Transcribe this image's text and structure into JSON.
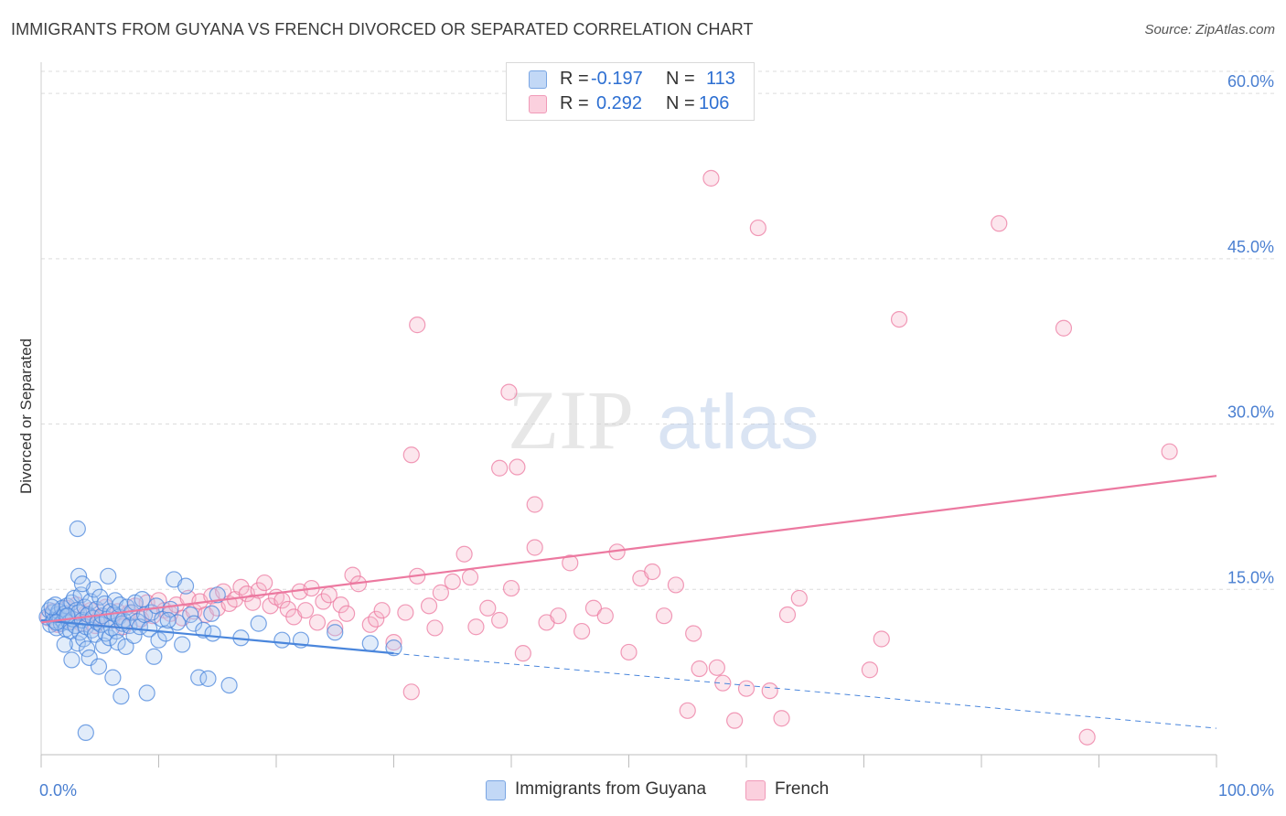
{
  "header": {
    "title": "IMMIGRANTS FROM GUYANA VS FRENCH DIVORCED OR SEPARATED CORRELATION CHART",
    "source": "Source: ZipAtlas.com"
  },
  "legend": {
    "rows": [
      {
        "r_label": "R =",
        "r_value": "-0.197",
        "n_label": "N =",
        "n_value": "113",
        "color": "#a9c8f2"
      },
      {
        "r_label": "R =",
        "r_value": "0.292",
        "n_label": "N =",
        "n_value": "106",
        "color": "#f7b6cb"
      }
    ]
  },
  "bottom_legend": [
    {
      "label": "Immigrants from Guyana",
      "color": "#a9c8f2"
    },
    {
      "label": "French",
      "color": "#f7b6cb"
    }
  ],
  "watermark": {
    "part1": "ZIP",
    "part2": "atlas"
  },
  "chart_data": {
    "type": "scatter",
    "title": "IMMIGRANTS FROM GUYANA VS FRENCH DIVORCED OR SEPARATED CORRELATION CHART",
    "xlabel": "",
    "ylabel": "Divorced or Separated",
    "xlim": [
      0,
      100
    ],
    "ylim": [
      0,
      62
    ],
    "x_tick_labels": [
      "0.0%",
      "100.0%"
    ],
    "y_ticks": [
      15,
      30,
      45,
      60
    ],
    "y_tick_labels": [
      "15.0%",
      "30.0%",
      "45.0%",
      "60.0%"
    ],
    "grid": true,
    "colors": {
      "guyana": "#4a86dc",
      "french": "#ec79a0",
      "tick_text": "#4a7fd1"
    },
    "series": [
      {
        "name": "Immigrants from Guyana",
        "marker_color": "#a9c8f2",
        "edge_color": "#4a86dc",
        "trend": {
          "x": [
            0,
            30,
            100
          ],
          "y": [
            12.2,
            9.2,
            2.4
          ],
          "solid_until": 30
        },
        "points": [
          [
            0.5,
            12.5
          ],
          [
            0.7,
            13.1
          ],
          [
            0.8,
            11.8
          ],
          [
            1.0,
            12.9
          ],
          [
            1.1,
            12.2
          ],
          [
            1.2,
            13.6
          ],
          [
            1.3,
            11.5
          ],
          [
            1.4,
            12.7
          ],
          [
            1.5,
            13.0
          ],
          [
            1.6,
            12.4
          ],
          [
            1.7,
            11.9
          ],
          [
            1.8,
            13.3
          ],
          [
            1.9,
            12.1
          ],
          [
            2.0,
            12.8
          ],
          [
            2.1,
            11.4
          ],
          [
            2.2,
            13.5
          ],
          [
            2.3,
            12.6
          ],
          [
            2.4,
            12.0
          ],
          [
            2.5,
            11.2
          ],
          [
            2.6,
            13.8
          ],
          [
            2.7,
            12.3
          ],
          [
            2.8,
            14.2
          ],
          [
            2.9,
            11.7
          ],
          [
            3.0,
            13.1
          ],
          [
            3.1,
            10.1
          ],
          [
            3.2,
            12.9
          ],
          [
            3.3,
            11.1
          ],
          [
            3.4,
            14.5
          ],
          [
            3.5,
            12.2
          ],
          [
            3.6,
            10.5
          ],
          [
            3.7,
            13.4
          ],
          [
            3.8,
            11.6
          ],
          [
            3.9,
            9.6
          ],
          [
            4.0,
            12.7
          ],
          [
            4.1,
            8.8
          ],
          [
            4.2,
            13.9
          ],
          [
            4.3,
            11.3
          ],
          [
            4.4,
            12.4
          ],
          [
            4.5,
            15.0
          ],
          [
            4.6,
            10.9
          ],
          [
            4.7,
            13.2
          ],
          [
            4.8,
            12.0
          ],
          [
            4.9,
            8.0
          ],
          [
            5.0,
            14.3
          ],
          [
            5.1,
            11.8
          ],
          [
            5.2,
            12.6
          ],
          [
            5.3,
            9.9
          ],
          [
            5.4,
            13.7
          ],
          [
            5.5,
            11.0
          ],
          [
            5.6,
            12.3
          ],
          [
            5.7,
            16.2
          ],
          [
            5.8,
            10.6
          ],
          [
            5.9,
            13.0
          ],
          [
            6.0,
            11.5
          ],
          [
            6.1,
            7.0
          ],
          [
            6.2,
            12.8
          ],
          [
            6.3,
            14.0
          ],
          [
            6.4,
            11.2
          ],
          [
            6.5,
            10.2
          ],
          [
            6.6,
            12.5
          ],
          [
            6.7,
            13.6
          ],
          [
            6.8,
            5.3
          ],
          [
            6.9,
            11.9
          ],
          [
            7.0,
            12.2
          ],
          [
            7.2,
            9.8
          ],
          [
            7.3,
            13.4
          ],
          [
            7.5,
            11.7
          ],
          [
            7.7,
            12.9
          ],
          [
            7.9,
            10.8
          ],
          [
            8.0,
            13.8
          ],
          [
            8.2,
            12.1
          ],
          [
            8.4,
            11.6
          ],
          [
            8.6,
            14.1
          ],
          [
            8.8,
            12.7
          ],
          [
            9.0,
            5.6
          ],
          [
            9.2,
            11.4
          ],
          [
            9.4,
            12.9
          ],
          [
            9.6,
            8.9
          ],
          [
            9.8,
            13.5
          ],
          [
            10.0,
            10.4
          ],
          [
            10.3,
            12.3
          ],
          [
            10.6,
            11.0
          ],
          [
            11.0,
            13.2
          ],
          [
            11.3,
            15.9
          ],
          [
            11.6,
            12.0
          ],
          [
            12.0,
            10.0
          ],
          [
            12.3,
            15.3
          ],
          [
            12.7,
            12.7
          ],
          [
            13.0,
            11.9
          ],
          [
            13.4,
            7.0
          ],
          [
            13.8,
            11.3
          ],
          [
            14.2,
            6.9
          ],
          [
            14.6,
            11.0
          ],
          [
            15.0,
            14.5
          ],
          [
            3.1,
            20.5
          ],
          [
            3.2,
            16.2
          ],
          [
            3.5,
            15.5
          ],
          [
            3.8,
            2.0
          ],
          [
            2.0,
            10.0
          ],
          [
            2.6,
            8.6
          ],
          [
            22.1,
            10.4
          ],
          [
            25.0,
            11.1
          ],
          [
            28.0,
            10.1
          ],
          [
            30.0,
            9.7
          ],
          [
            17.0,
            10.6
          ],
          [
            16.0,
            6.3
          ],
          [
            18.5,
            11.9
          ],
          [
            20.5,
            10.4
          ],
          [
            14.5,
            12.8
          ],
          [
            10.8,
            12.2
          ],
          [
            1.3,
            12.0
          ],
          [
            0.9,
            13.4
          ],
          [
            2.2,
            12.6
          ]
        ]
      },
      {
        "name": "French",
        "marker_color": "#f7b6cb",
        "edge_color": "#ec79a0",
        "trend": {
          "x": [
            0,
            100
          ],
          "y": [
            12.0,
            25.3
          ]
        },
        "points": [
          [
            0.6,
            12.4
          ],
          [
            1.0,
            13.0
          ],
          [
            1.4,
            11.8
          ],
          [
            1.8,
            12.7
          ],
          [
            2.2,
            13.3
          ],
          [
            2.6,
            12.1
          ],
          [
            3.0,
            13.6
          ],
          [
            3.4,
            11.9
          ],
          [
            3.8,
            12.8
          ],
          [
            4.2,
            13.1
          ],
          [
            4.6,
            11.7
          ],
          [
            5.0,
            12.5
          ],
          [
            5.5,
            13.4
          ],
          [
            6.0,
            12.2
          ],
          [
            6.5,
            13.0
          ],
          [
            7.0,
            11.6
          ],
          [
            7.5,
            12.9
          ],
          [
            8.0,
            13.5
          ],
          [
            8.5,
            12.3
          ],
          [
            9.0,
            13.8
          ],
          [
            9.5,
            12.6
          ],
          [
            10.0,
            14.0
          ],
          [
            10.5,
            13.1
          ],
          [
            11.0,
            12.8
          ],
          [
            11.5,
            13.6
          ],
          [
            12.0,
            12.4
          ],
          [
            12.5,
            14.2
          ],
          [
            13.0,
            13.0
          ],
          [
            13.5,
            13.9
          ],
          [
            14.0,
            12.7
          ],
          [
            14.5,
            14.4
          ],
          [
            15.0,
            13.3
          ],
          [
            15.5,
            14.8
          ],
          [
            16.0,
            13.7
          ],
          [
            16.5,
            14.1
          ],
          [
            17.0,
            15.2
          ],
          [
            17.5,
            14.6
          ],
          [
            18.0,
            13.8
          ],
          [
            18.5,
            14.9
          ],
          [
            19.0,
            15.6
          ],
          [
            19.5,
            13.5
          ],
          [
            20.0,
            14.3
          ],
          [
            20.5,
            14.0
          ],
          [
            21.0,
            13.2
          ],
          [
            21.5,
            12.5
          ],
          [
            22.0,
            14.8
          ],
          [
            22.5,
            13.1
          ],
          [
            23.0,
            15.1
          ],
          [
            23.5,
            12.0
          ],
          [
            24.0,
            13.9
          ],
          [
            24.5,
            14.5
          ],
          [
            25.0,
            11.5
          ],
          [
            25.5,
            13.6
          ],
          [
            26.0,
            12.8
          ],
          [
            26.5,
            16.3
          ],
          [
            27.0,
            15.5
          ],
          [
            28.0,
            11.8
          ],
          [
            28.5,
            12.3
          ],
          [
            29.0,
            13.1
          ],
          [
            30.0,
            10.2
          ],
          [
            31.0,
            12.9
          ],
          [
            32.0,
            16.2
          ],
          [
            33.0,
            13.5
          ],
          [
            33.5,
            11.5
          ],
          [
            34.0,
            14.7
          ],
          [
            35.0,
            15.7
          ],
          [
            36.0,
            18.2
          ],
          [
            36.5,
            16.1
          ],
          [
            37.0,
            11.6
          ],
          [
            38.0,
            13.3
          ],
          [
            39.0,
            12.2
          ],
          [
            40.0,
            15.1
          ],
          [
            41.0,
            9.2
          ],
          [
            42.0,
            18.8
          ],
          [
            43.0,
            12.0
          ],
          [
            44.0,
            12.6
          ],
          [
            45.0,
            17.4
          ],
          [
            46.0,
            11.2
          ],
          [
            47.0,
            13.3
          ],
          [
            48.0,
            12.6
          ],
          [
            49.0,
            18.4
          ],
          [
            50.0,
            9.3
          ],
          [
            51.0,
            16.0
          ],
          [
            52.0,
            16.6
          ],
          [
            53.0,
            12.6
          ],
          [
            54.0,
            15.4
          ],
          [
            55.0,
            4.0
          ],
          [
            55.5,
            11.0
          ],
          [
            56.0,
            7.8
          ],
          [
            57.0,
            52.3
          ],
          [
            57.5,
            7.9
          ],
          [
            58.0,
            6.5
          ],
          [
            59.0,
            3.1
          ],
          [
            60.0,
            6.0
          ],
          [
            61.0,
            47.8
          ],
          [
            62.0,
            5.8
          ],
          [
            63.0,
            3.3
          ],
          [
            63.5,
            12.7
          ],
          [
            64.5,
            14.2
          ],
          [
            70.5,
            7.7
          ],
          [
            71.5,
            10.5
          ],
          [
            81.5,
            48.2
          ],
          [
            89.0,
            1.6
          ],
          [
            73.0,
            39.5
          ],
          [
            87.0,
            38.7
          ],
          [
            96.0,
            27.5
          ]
        ]
      }
    ],
    "extra_french_points": [
      [
        32.0,
        39.0
      ],
      [
        31.5,
        27.2
      ],
      [
        39.8,
        32.9
      ],
      [
        39.0,
        26.0
      ],
      [
        40.5,
        26.1
      ],
      [
        42.0,
        22.7
      ],
      [
        31.5,
        5.7
      ]
    ]
  }
}
